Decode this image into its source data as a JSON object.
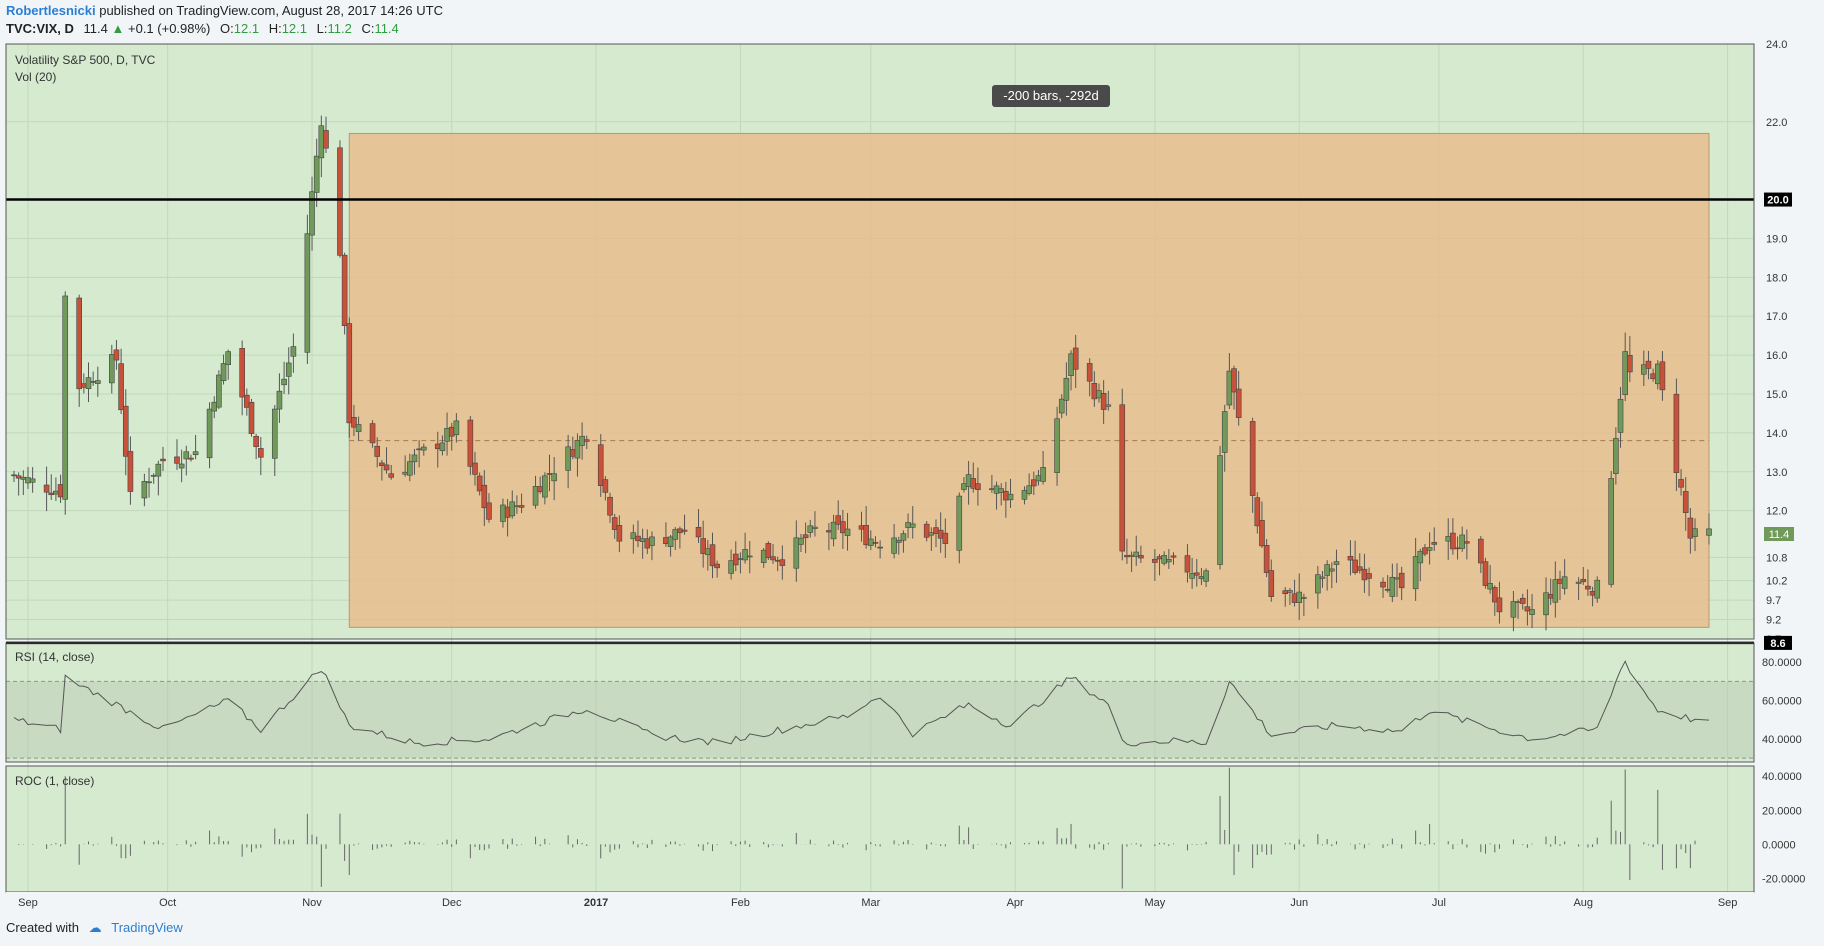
{
  "header": {
    "author": "Robertlesnicki",
    "published": "published on TradingView.com, August 28, 2017 14:26 UTC",
    "symbol": "TVC:VIX, D",
    "last": "11.4",
    "change": "+0.1 (+0.98%)",
    "open_label": "O:",
    "open": "12.1",
    "high_label": "H:",
    "high": "12.1",
    "low_label": "L:",
    "low": "11.2",
    "close_label": "C:",
    "close": "11.4"
  },
  "footer": {
    "created_with": "Created with",
    "brand": "TradingView"
  },
  "colors": {
    "up": "#6f9a5a",
    "down": "#c8513a",
    "bg": "#d6ead0",
    "range": "#e8bb8a"
  },
  "chart_data": {
    "type": "candlestick",
    "title": "Volatility S&P 500, D, TVC",
    "indicator_label": "Vol (20)",
    "range_label": "-200 bars, -292d",
    "price_axis": [
      "24.0",
      "22.0",
      "20.0",
      "19.0",
      "18.0",
      "17.0",
      "16.0",
      "15.0",
      "14.0",
      "13.0",
      "12.0",
      "10.8",
      "10.2",
      "9.7",
      "9.2",
      "8.7"
    ],
    "price_ylim": [
      8.7,
      24.0
    ],
    "x_ticks": [
      "Sep",
      "Oct",
      "Nov",
      "Dec",
      "2017",
      "Feb",
      "Mar",
      "Apr",
      "May",
      "Jun",
      "Jul",
      "Aug",
      "Sep"
    ],
    "hlines": [
      {
        "value": 20.0,
        "label": "20.0"
      },
      {
        "value": 8.6,
        "label": "8.6"
      }
    ],
    "last_price": {
      "value": 11.4,
      "label": "11.4"
    },
    "range_top": 21.7,
    "range_bottom": 9.0,
    "range_mid": 13.8,
    "range_start": "2016-11-09",
    "range_end": "2017-08-28",
    "series": [
      {
        "name": "TVC:VIX",
        "key_points": [
          {
            "date": "2016-08-29",
            "close": 12.9
          },
          {
            "date": "2016-09-08",
            "close": 12.5
          },
          {
            "date": "2016-09-09",
            "close": 17.5
          },
          {
            "date": "2016-09-12",
            "close": 15.2
          },
          {
            "date": "2016-09-20",
            "close": 15.9
          },
          {
            "date": "2016-09-23",
            "close": 12.3
          },
          {
            "date": "2016-09-30",
            "close": 13.3
          },
          {
            "date": "2016-10-07",
            "close": 13.5
          },
          {
            "date": "2016-10-14",
            "close": 16.1
          },
          {
            "date": "2016-10-21",
            "close": 13.4
          },
          {
            "date": "2016-10-28",
            "close": 16.2
          },
          {
            "date": "2016-11-03",
            "close": 22.1
          },
          {
            "date": "2016-11-07",
            "close": 18.7
          },
          {
            "date": "2016-11-09",
            "close": 14.4
          },
          {
            "date": "2016-11-18",
            "close": 12.9
          },
          {
            "date": "2016-12-02",
            "close": 14.1
          },
          {
            "date": "2016-12-09",
            "close": 11.8
          },
          {
            "date": "2016-12-16",
            "close": 12.2
          },
          {
            "date": "2016-12-30",
            "close": 14.0
          },
          {
            "date": "2017-01-06",
            "close": 11.3
          },
          {
            "date": "2017-01-13",
            "close": 11.2
          },
          {
            "date": "2017-01-20",
            "close": 11.5
          },
          {
            "date": "2017-01-27",
            "close": 10.6
          },
          {
            "date": "2017-02-03",
            "close": 11.0
          },
          {
            "date": "2017-02-10",
            "close": 10.8
          },
          {
            "date": "2017-02-17",
            "close": 11.5
          },
          {
            "date": "2017-02-24",
            "close": 11.5
          },
          {
            "date": "2017-03-03",
            "close": 11.2
          },
          {
            "date": "2017-03-10",
            "close": 11.6
          },
          {
            "date": "2017-03-17",
            "close": 11.2
          },
          {
            "date": "2017-03-22",
            "close": 12.8
          },
          {
            "date": "2017-03-31",
            "close": 12.4
          },
          {
            "date": "2017-04-07",
            "close": 12.9
          },
          {
            "date": "2017-04-13",
            "close": 15.9
          },
          {
            "date": "2017-04-21",
            "close": 14.6
          },
          {
            "date": "2017-04-24",
            "close": 10.8
          },
          {
            "date": "2017-05-05",
            "close": 10.6
          },
          {
            "date": "2017-05-12",
            "close": 10.4
          },
          {
            "date": "2017-05-17",
            "close": 15.6
          },
          {
            "date": "2017-05-26",
            "close": 9.8
          },
          {
            "date": "2017-06-02",
            "close": 9.8
          },
          {
            "date": "2017-06-09",
            "close": 10.7
          },
          {
            "date": "2017-06-16",
            "close": 10.4
          },
          {
            "date": "2017-06-23",
            "close": 10.0
          },
          {
            "date": "2017-06-29",
            "close": 11.2
          },
          {
            "date": "2017-07-07",
            "close": 11.2
          },
          {
            "date": "2017-07-14",
            "close": 9.5
          },
          {
            "date": "2017-07-21",
            "close": 9.4
          },
          {
            "date": "2017-07-28",
            "close": 10.3
          },
          {
            "date": "2017-08-04",
            "close": 10.0
          },
          {
            "date": "2017-08-10",
            "close": 16.0
          },
          {
            "date": "2017-08-11",
            "close": 15.5
          },
          {
            "date": "2017-08-17",
            "close": 15.6
          },
          {
            "date": "2017-08-24",
            "close": 11.3
          },
          {
            "date": "2017-08-28",
            "close": 11.4
          }
        ]
      }
    ],
    "rsi": {
      "label": "RSI (14, close)",
      "axis": [
        "80.0000",
        "60.0000",
        "40.0000"
      ],
      "ylim": [
        28,
        90
      ],
      "band": [
        30,
        70
      ],
      "key_points": [
        {
          "date": "2016-08-29",
          "value": 50
        },
        {
          "date": "2016-09-08",
          "value": 45
        },
        {
          "date": "2016-09-09",
          "value": 72
        },
        {
          "date": "2016-09-20",
          "value": 58
        },
        {
          "date": "2016-09-30",
          "value": 45
        },
        {
          "date": "2016-10-14",
          "value": 60
        },
        {
          "date": "2016-10-21",
          "value": 45
        },
        {
          "date": "2016-11-03",
          "value": 77
        },
        {
          "date": "2016-11-09",
          "value": 47
        },
        {
          "date": "2016-11-23",
          "value": 38
        },
        {
          "date": "2016-12-09",
          "value": 40
        },
        {
          "date": "2016-12-30",
          "value": 56
        },
        {
          "date": "2017-01-13",
          "value": 42
        },
        {
          "date": "2017-01-27",
          "value": 38
        },
        {
          "date": "2017-02-10",
          "value": 45
        },
        {
          "date": "2017-02-24",
          "value": 52
        },
        {
          "date": "2017-03-03",
          "value": 63
        },
        {
          "date": "2017-03-10",
          "value": 43
        },
        {
          "date": "2017-03-22",
          "value": 58
        },
        {
          "date": "2017-03-31",
          "value": 47
        },
        {
          "date": "2017-04-13",
          "value": 72
        },
        {
          "date": "2017-04-21",
          "value": 58
        },
        {
          "date": "2017-04-24",
          "value": 38
        },
        {
          "date": "2017-05-05",
          "value": 39
        },
        {
          "date": "2017-05-12",
          "value": 38
        },
        {
          "date": "2017-05-17",
          "value": 70
        },
        {
          "date": "2017-05-26",
          "value": 42
        },
        {
          "date": "2017-06-09",
          "value": 47
        },
        {
          "date": "2017-06-23",
          "value": 44
        },
        {
          "date": "2017-06-29",
          "value": 55
        },
        {
          "date": "2017-07-07",
          "value": 49
        },
        {
          "date": "2017-07-21",
          "value": 40
        },
        {
          "date": "2017-08-04",
          "value": 45
        },
        {
          "date": "2017-08-10",
          "value": 82
        },
        {
          "date": "2017-08-11",
          "value": 75
        },
        {
          "date": "2017-08-17",
          "value": 55
        },
        {
          "date": "2017-08-28",
          "value": 48
        }
      ]
    },
    "roc": {
      "label": "ROC (1, close)",
      "axis": [
        "40.0000",
        "20.0000",
        "0.0000",
        "-20.0000"
      ],
      "ylim": [
        -28,
        46
      ],
      "spikes": [
        {
          "date": "2016-09-09",
          "value": 40
        },
        {
          "date": "2016-09-12",
          "value": -12
        },
        {
          "date": "2016-11-03",
          "value": -25
        },
        {
          "date": "2016-11-07",
          "value": 18
        },
        {
          "date": "2016-11-09",
          "value": -18
        },
        {
          "date": "2017-03-22",
          "value": 10
        },
        {
          "date": "2017-04-13",
          "value": 12
        },
        {
          "date": "2017-04-24",
          "value": -26
        },
        {
          "date": "2017-05-17",
          "value": 45
        },
        {
          "date": "2017-05-18",
          "value": -18
        },
        {
          "date": "2017-06-29",
          "value": 12
        },
        {
          "date": "2017-08-10",
          "value": 44
        },
        {
          "date": "2017-08-11",
          "value": -21
        },
        {
          "date": "2017-08-17",
          "value": 32
        },
        {
          "date": "2017-08-18",
          "value": -15
        },
        {
          "date": "2017-08-24",
          "value": -14
        }
      ]
    }
  }
}
